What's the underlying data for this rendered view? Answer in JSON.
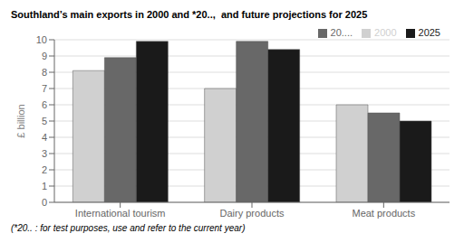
{
  "chart_data": {
    "type": "bar",
    "title": "Southland’s main exports in 2000 and *20..,  and future projections for 2025",
    "footnote": "(*20.. : for test purposes, use and refer to the current year)",
    "categories": [
      "International tourism",
      "Dairy products",
      "Meat products"
    ],
    "series": [
      {
        "name": "2000",
        "color": "#d0d0d0",
        "values": [
          8.1,
          7.0,
          6.0
        ]
      },
      {
        "name": "20....",
        "color": "#686868",
        "values": [
          8.9,
          9.9,
          5.5
        ]
      },
      {
        "name": "2025",
        "color": "#1a1a1a",
        "values": [
          9.9,
          9.4,
          5.0
        ]
      }
    ],
    "ylabel": "£ billion",
    "ylim": [
      0,
      10
    ],
    "yticks": [
      0,
      1,
      2,
      3,
      4,
      5,
      6,
      7,
      8,
      9,
      10
    ],
    "grid": true,
    "legend": "upper right"
  }
}
